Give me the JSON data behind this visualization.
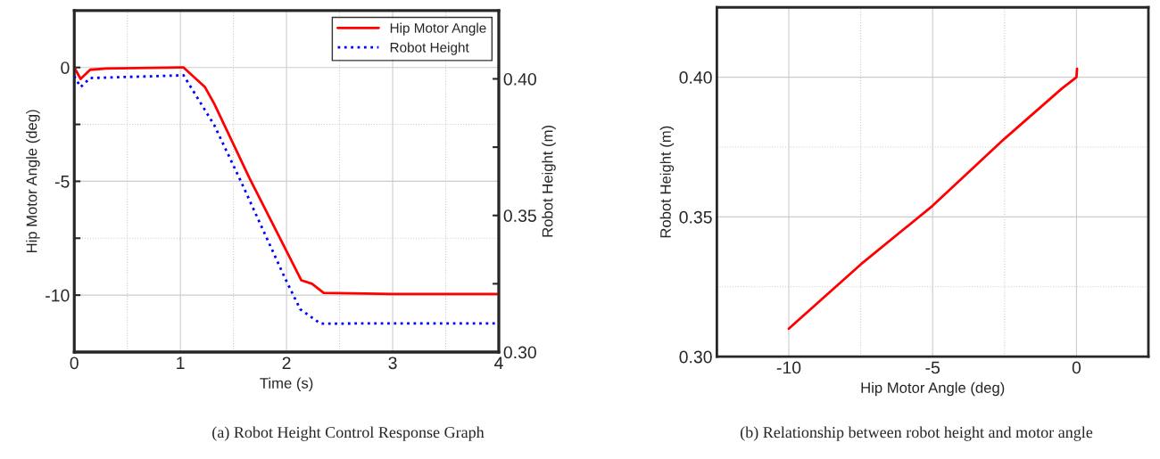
{
  "chart_data": [
    {
      "type": "line",
      "xlabel": "Time (s)",
      "ylabel": "Hip Motor Angle (deg)",
      "y2label": "Robot Height (m)",
      "xlim": [
        0,
        4
      ],
      "xticks": [
        0,
        {
          "value": 0.5,
          "label": null
        },
        1,
        {
          "value": 1.5,
          "label": null
        },
        2,
        {
          "value": 2.5,
          "label": null
        },
        3,
        {
          "value": 3.5,
          "label": null
        },
        4
      ],
      "ylim": [
        -12.5,
        2.5
      ],
      "yticks": [
        -10,
        {
          "value": -7.5,
          "label": null
        },
        -5,
        {
          "value": -2.5,
          "label": null
        },
        0
      ],
      "y2lim": [
        0.3,
        0.425
      ],
      "y2ticks": [
        {
          "value": 0.3,
          "label": "0.30"
        },
        {
          "value": 0.325,
          "label": null
        },
        {
          "value": 0.35,
          "label": "0.35"
        },
        {
          "value": 0.375,
          "label": null
        },
        {
          "value": 0.4,
          "label": "0.40"
        }
      ],
      "grid": true,
      "legend": "top right",
      "marker": "none",
      "series": [
        {
          "name": "Hip Motor Angle",
          "color": "#ff0000",
          "line_style": "solid",
          "x": [
            0,
            0.06,
            0.15,
            0.3,
            1.0,
            1.03,
            1.23,
            1.32,
            1.65,
            2.14,
            2.24,
            2.35,
            3.0,
            4.0
          ],
          "values": [
            0,
            -0.5,
            -0.1,
            -0.05,
            0,
            0,
            -0.85,
            -1.6,
            -4.85,
            -9.35,
            -9.5,
            -9.9,
            -9.95,
            -9.95
          ]
        },
        {
          "name": "Robot Height",
          "color": "#0000ff",
          "line_style": "dotted",
          "axis": "y2",
          "x": [
            0,
            0.06,
            0.15,
            1.03,
            1.32,
            1.57,
            1.99,
            2.13,
            2.32,
            3.0,
            4.0
          ],
          "values": [
            0.401,
            0.397,
            0.4003,
            0.4013,
            0.383,
            0.3625,
            0.3267,
            0.3156,
            0.3104,
            0.3105,
            0.3105
          ]
        }
      ],
      "annotations": [
        "(a) Robot Height Control Response Graph"
      ]
    },
    {
      "type": "line",
      "xlabel": "Hip Motor Angle (deg)",
      "ylabel": "Robot Height (m)",
      "xlim": [
        -12.5,
        2.5
      ],
      "xticks": [
        -10,
        {
          "value": -7.5,
          "label": null
        },
        -5,
        {
          "value": -2.5,
          "label": null
        },
        0
      ],
      "ylim": [
        0.3,
        0.425
      ],
      "yticks": [
        {
          "value": 0.3,
          "label": "0.30"
        },
        {
          "value": 0.325,
          "label": null
        },
        {
          "value": 0.35,
          "label": "0.35"
        },
        {
          "value": 0.375,
          "label": null
        },
        {
          "value": 0.4,
          "label": "0.40"
        }
      ],
      "grid": true,
      "marker": "none",
      "series": [
        {
          "color": "#ff0000",
          "line_style": "solid",
          "x": [
            -10,
            -7.5,
            -5,
            -2.5,
            -0.5,
            0,
            0.02
          ],
          "values": [
            0.31,
            0.333,
            0.354,
            0.378,
            0.396,
            0.4,
            0.403
          ]
        }
      ],
      "annotations": [
        "(b) Relationship between robot height and motor angle"
      ]
    }
  ]
}
